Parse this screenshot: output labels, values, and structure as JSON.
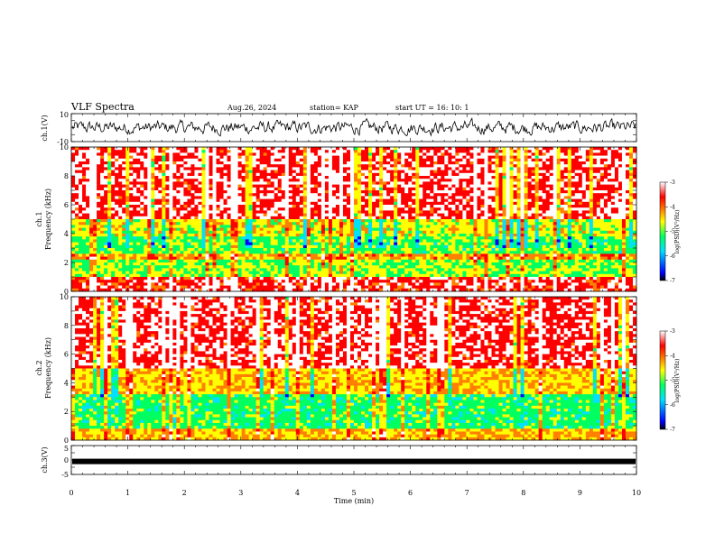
{
  "header": {
    "title": "VLF Spectra",
    "date": "Aug.26, 2024",
    "station": "station= KAP",
    "start_ut": "start  UT =   16: 10: 1"
  },
  "chart_data": [
    {
      "type": "line",
      "panel": "ch1-waveform",
      "ylabel": "ch.1(V)",
      "ylim": [
        -10,
        10
      ],
      "y_tick_labels": [
        "10",
        "-10"
      ],
      "xlim": [
        0,
        10
      ],
      "series_style": {
        "color": "#000000"
      },
      "note_shape": "noisy waveform oscillating roughly between -5 and 5 V"
    },
    {
      "type": "heatmap",
      "panel": "ch1-spectrogram",
      "ylabel_top": "ch.1",
      "ylabel": "Frequency (kHz)",
      "ylim": [
        0,
        10
      ],
      "y_ticks": [
        0,
        2,
        4,
        6,
        8,
        10
      ],
      "xlim": [
        0,
        10
      ],
      "colorbar": {
        "label": "log(PSD)(V²/Hz)",
        "range": [
          -7,
          -3
        ],
        "ticks": [
          "-3",
          "-4",
          "-5",
          "-6",
          "-7"
        ],
        "colors": [
          "#000000",
          "#0000ff",
          "#00e0ff",
          "#00ff60",
          "#ffff00",
          "#ff8000",
          "#ff0000",
          "#ffffff"
        ]
      },
      "bands": [
        {
          "from_khz": 0,
          "to_khz": 1.0,
          "level": -3.8
        },
        {
          "from_khz": 1.0,
          "to_khz": 2.3,
          "level": -5.2
        },
        {
          "from_khz": 2.3,
          "to_khz": 2.6,
          "level": -4.4
        },
        {
          "from_khz": 2.6,
          "to_khz": 3.9,
          "level": -5.4
        },
        {
          "from_khz": 3.9,
          "to_khz": 5.0,
          "level": -4.9
        },
        {
          "from_khz": 5.0,
          "to_khz": 10.0,
          "level": -3.7
        }
      ]
    },
    {
      "type": "heatmap",
      "panel": "ch2-spectrogram",
      "ylabel_top": "ch.2",
      "ylabel": "Frequency (kHz)",
      "ylim": [
        0,
        10
      ],
      "y_ticks": [
        0,
        2,
        4,
        6,
        8,
        10
      ],
      "xlim": [
        0,
        10
      ],
      "colorbar": {
        "label": "log(PSD)(V²/Hz)",
        "range": [
          -7,
          -3
        ],
        "ticks": [
          "-3",
          "-4",
          "-5",
          "-6",
          "-7"
        ],
        "colors": [
          "#000000",
          "#0000ff",
          "#00e0ff",
          "#00ff60",
          "#ffff00",
          "#ff8000",
          "#ff0000",
          "#ffffff"
        ]
      },
      "bands": [
        {
          "from_khz": 0,
          "to_khz": 0.8,
          "level": -4.6
        },
        {
          "from_khz": 0.8,
          "to_khz": 3.2,
          "level": -5.5
        },
        {
          "from_khz": 3.2,
          "to_khz": 5.0,
          "level": -4.7
        },
        {
          "from_khz": 5.0,
          "to_khz": 10.0,
          "level": -3.7
        }
      ]
    },
    {
      "type": "line",
      "panel": "ch3-waveform",
      "ylabel": "ch.3(V)",
      "ylim": [
        -5,
        5
      ],
      "y_tick_labels": [
        "5",
        "0",
        "-5"
      ],
      "xlim": [
        0,
        10
      ],
      "x_ticks": [
        0,
        1,
        2,
        3,
        4,
        5,
        6,
        7,
        8,
        9,
        10
      ],
      "xlabel": "Time (min)",
      "series_style": {
        "color": "#000000"
      },
      "values_note": "constant trace near -0.5 V",
      "level": -0.5
    }
  ]
}
